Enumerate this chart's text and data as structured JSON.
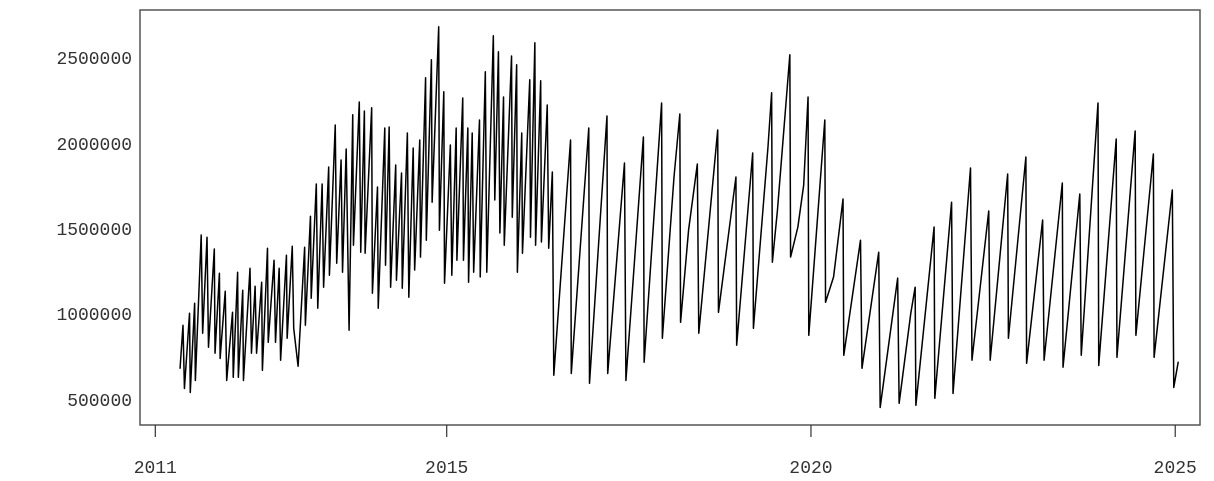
{
  "chart_data": {
    "type": "line",
    "xlim": [
      2010.79,
      2025.34
    ],
    "ylim": [
      350000,
      2780000
    ],
    "xticks": [
      2011,
      2015,
      2020,
      2025
    ],
    "yticks": [
      500000,
      1000000,
      1500000,
      2000000,
      2500000
    ],
    "marker": "none",
    "line_style": "solid",
    "series": [
      {
        "color": "#000000",
        "x": [
          2011.34,
          2011.38,
          2011.4,
          2011.47,
          2011.48,
          2011.54,
          2011.55,
          2011.63,
          2011.65,
          2011.71,
          2011.73,
          2011.81,
          2011.82,
          2011.88,
          2011.89,
          2011.96,
          2011.98,
          2012.06,
          2012.07,
          2012.13,
          2012.14,
          2012.2,
          2012.21,
          2012.3,
          2012.32,
          2012.37,
          2012.39,
          2012.46,
          2012.47,
          2012.54,
          2012.55,
          2012.63,
          2012.65,
          2012.7,
          2012.72,
          2012.8,
          2012.81,
          2012.88,
          2012.9,
          2012.96,
          2013.05,
          2013.06,
          2013.13,
          2013.14,
          2013.21,
          2013.23,
          2013.29,
          2013.31,
          2013.38,
          2013.39,
          2013.47,
          2013.49,
          2013.55,
          2013.57,
          2013.62,
          2013.66,
          2013.71,
          2013.72,
          2013.8,
          2013.82,
          2013.87,
          2013.88,
          2013.97,
          2013.98,
          2014.05,
          2014.06,
          2014.15,
          2014.16,
          2014.21,
          2014.23,
          2014.3,
          2014.31,
          2014.38,
          2014.39,
          2014.46,
          2014.48,
          2014.54,
          2014.56,
          2014.63,
          2014.64,
          2014.71,
          2014.72,
          2014.79,
          2014.8,
          2014.89,
          2014.9,
          2014.96,
          2014.97,
          2015.05,
          2015.07,
          2015.13,
          2015.14,
          2015.22,
          2015.23,
          2015.29,
          2015.3,
          2015.35,
          2015.37,
          2015.45,
          2015.46,
          2015.53,
          2015.55,
          2015.64,
          2015.66,
          2015.71,
          2015.73,
          2015.78,
          2015.79,
          2015.89,
          2015.9,
          2015.96,
          2015.97,
          2016.03,
          2016.04,
          2016.14,
          2016.15,
          2016.21,
          2016.22,
          2016.29,
          2016.3,
          2016.38,
          2016.4,
          2016.45,
          2016.47,
          2016.7,
          2016.71,
          2016.95,
          2016.96,
          2017.2,
          2017.21,
          2017.44,
          2017.46,
          2017.7,
          2017.71,
          2017.95,
          2017.96,
          2018.12,
          2018.2,
          2018.21,
          2018.32,
          2018.44,
          2018.46,
          2018.72,
          2018.73,
          2018.97,
          2018.98,
          2019.2,
          2019.21,
          2019.41,
          2019.46,
          2019.47,
          2019.54,
          2019.71,
          2019.72,
          2019.82,
          2019.9,
          2019.96,
          2019.97,
          2020.19,
          2020.2,
          2020.31,
          2020.44,
          2020.45,
          2020.68,
          2020.7,
          2020.93,
          2020.95,
          2021.19,
          2021.21,
          2021.37,
          2021.43,
          2021.44,
          2021.69,
          2021.7,
          2021.93,
          2021.95,
          2022.19,
          2022.21,
          2022.44,
          2022.46,
          2022.7,
          2022.71,
          2022.95,
          2022.96,
          2023.18,
          2023.2,
          2023.45,
          2023.46,
          2023.69,
          2023.71,
          2023.94,
          2023.95,
          2024.19,
          2024.2,
          2024.45,
          2024.46,
          2024.7,
          2024.71,
          2024.96,
          2024.98,
          2025.04
        ],
        "values": [
          682000,
          934000,
          564000,
          1004000,
          541000,
          1063000,
          611000,
          1462000,
          887000,
          1450000,
          805000,
          1380000,
          770000,
          1239000,
          740000,
          1133000,
          611000,
          1010000,
          629000,
          1245000,
          629000,
          1139000,
          611000,
          1268000,
          770000,
          1163000,
          770000,
          1186000,
          670000,
          1385000,
          834000,
          1315000,
          834000,
          1268000,
          729000,
          1344000,
          858000,
          1397000,
          916000,
          694000,
          1391000,
          934000,
          1573000,
          1092000,
          1761000,
          1034000,
          1761000,
          1157000,
          1861000,
          1227000,
          2107000,
          1297000,
          1902000,
          1245000,
          1966000,
          905000,
          2166000,
          1403000,
          2242000,
          1362000,
          2189000,
          1356000,
          2207000,
          1122000,
          1743000,
          1034000,
          2089000,
          1286000,
          2095000,
          1157000,
          1873000,
          1198000,
          1826000,
          1151000,
          2060000,
          1098000,
          1972000,
          1257000,
          2019000,
          1333000,
          2383000,
          1432000,
          2488000,
          1655000,
          2682000,
          1491000,
          2301000,
          1180000,
          1990000,
          1227000,
          2089000,
          1315000,
          2265000,
          1315000,
          2089000,
          1186000,
          2060000,
          1245000,
          2136000,
          1216000,
          2418000,
          1245000,
          2629000,
          1667000,
          2535000,
          1474000,
          2271000,
          1403000,
          2511000,
          1567000,
          2459000,
          1245000,
          2060000,
          1356000,
          2371000,
          1450000,
          2588000,
          1403000,
          2365000,
          1421000,
          2224000,
          1385000,
          1832000,
          641000,
          2019000,
          652000,
          2089000,
          594000,
          2160000,
          652000,
          1884000,
          611000,
          2037000,
          717000,
          2236000,
          858000,
          1802000,
          2171000,
          951000,
          1491000,
          1878000,
          887000,
          2078000,
          1010000,
          1802000,
          817000,
          1943000,
          916000,
          1978000,
          2295000,
          1303000,
          1608000,
          2518000,
          1333000,
          1509000,
          1755000,
          2271000,
          875000,
          2136000,
          1069000,
          1216000,
          1673000,
          758000,
          1432000,
          682000,
          1362000,
          453000,
          1210000,
          477000,
          1004000,
          1157000,
          465000,
          1509000,
          506000,
          1655000,
          535000,
          1855000,
          729000,
          1603000,
          729000,
          1820000,
          858000,
          1919000,
          711000,
          1550000,
          729000,
          1767000,
          688000,
          1702000,
          758000,
          2236000,
          699000,
          2025000,
          746000,
          2072000,
          875000,
          1937000,
          746000,
          1726000,
          570000,
          717000
        ]
      }
    ]
  }
}
